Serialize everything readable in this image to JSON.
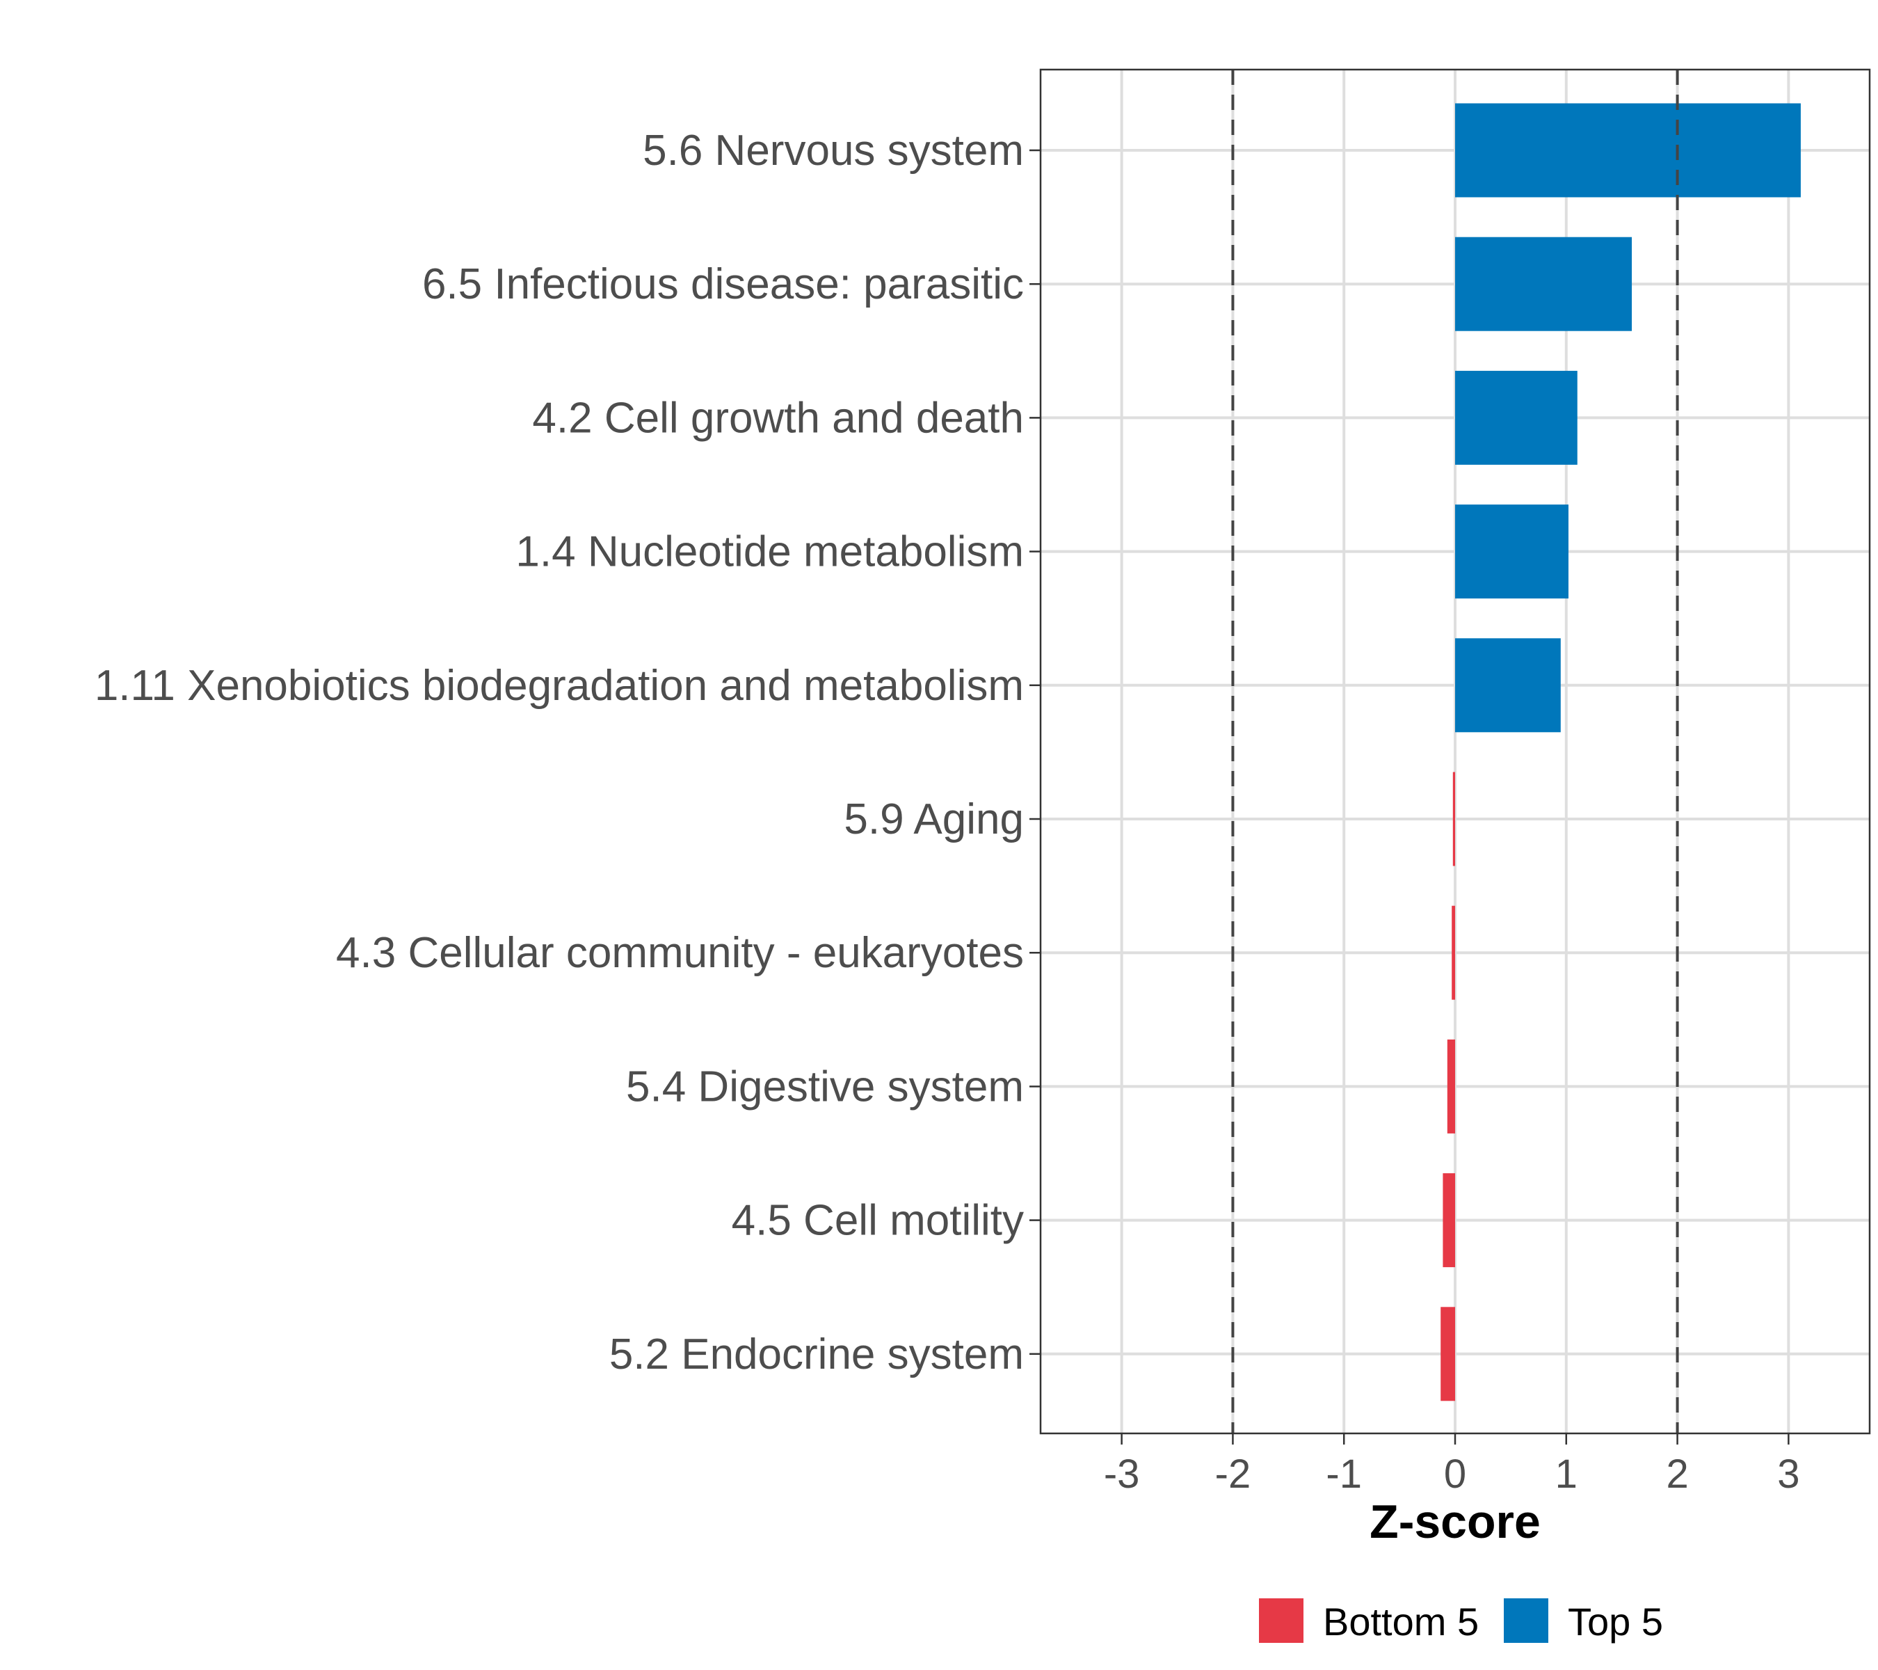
{
  "chart_data": {
    "type": "bar",
    "orientation": "horizontal",
    "title": "",
    "xlabel": "Z-score",
    "ylabel": "",
    "xlim": [
      -3.73,
      3.73
    ],
    "xticks": [
      -3,
      -2,
      -1,
      0,
      1,
      2,
      3
    ],
    "xtick_labels": [
      "-3",
      "-2",
      "-1",
      "0",
      "1",
      "2",
      "3"
    ],
    "reference_lines": [
      -2,
      2
    ],
    "grid": true,
    "categories": [
      "5.6 Nervous system",
      "6.5 Infectious disease: parasitic",
      "4.2 Cell growth and death",
      "1.4 Nucleotide metabolism",
      "1.11 Xenobiotics biodegradation and metabolism",
      "5.9 Aging",
      "4.3 Cellular community - eukaryotes",
      "5.4 Digestive system",
      "4.5 Cell motility",
      "5.2 Endocrine system"
    ],
    "values": [
      3.11,
      1.59,
      1.1,
      1.02,
      0.95,
      -0.02,
      -0.03,
      -0.07,
      -0.11,
      -0.13
    ],
    "groups": [
      "Top 5",
      "Top 5",
      "Top 5",
      "Top 5",
      "Top 5",
      "Bottom 5",
      "Bottom 5",
      "Bottom 5",
      "Bottom 5",
      "Bottom 5"
    ],
    "legend": {
      "placement": "bottom",
      "entries": [
        {
          "name": "Bottom 5",
          "color": "#E63946"
        },
        {
          "name": "Top 5",
          "color": "#0077BB"
        }
      ]
    }
  }
}
